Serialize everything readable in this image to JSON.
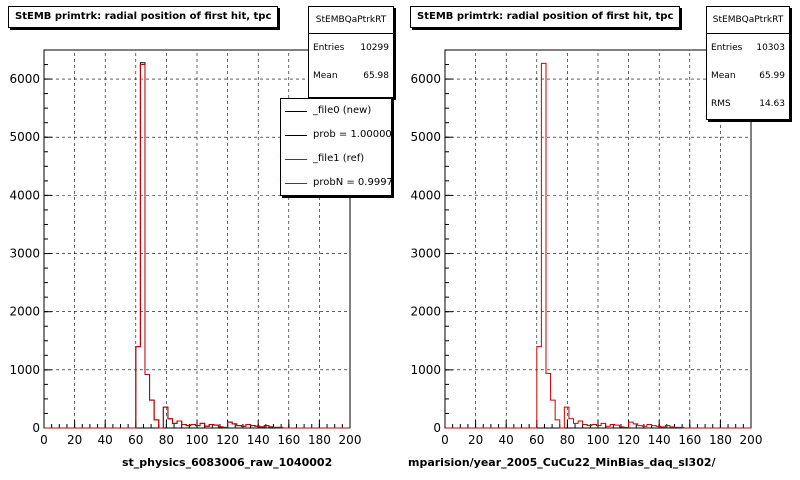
{
  "charts": [
    {
      "title": "StEMB primtrk: radial position of first hit, tpc",
      "stats": {
        "name": "StEMBQaPtrkRT",
        "rows": [
          {
            "label": "Entries",
            "value": "10299"
          },
          {
            "label": "Mean",
            "value": "65.98"
          }
        ]
      },
      "legend": [
        {
          "text": "_file0 (new)",
          "color": "#000000"
        },
        {
          "text": "prob = 1.000000",
          "color": "#000000"
        },
        {
          "text": "_file1 (ref)",
          "color": "#cc0000"
        },
        {
          "text": "probN = 0.999752",
          "color": "#cc0000"
        }
      ],
      "xcaption": "st_physics_6083006_raw_1040002"
    },
    {
      "title": "StEMB primtrk: radial position of first hit, tpc",
      "stats": {
        "name": "StEMBQaPtrkRT",
        "rows": [
          {
            "label": "Entries",
            "value": "10303"
          },
          {
            "label": "Mean",
            "value": "65.99"
          },
          {
            "label": "RMS",
            "value": "14.63"
          }
        ]
      },
      "legend": [],
      "xcaption": "mparision/year_2005_CuCu22_MinBias_daq_sl302/"
    }
  ],
  "chart_data": [
    {
      "type": "step-histogram",
      "title": "StEMB primtrk: radial position of first hit, tpc",
      "xlim": [
        0,
        200
      ],
      "ylim": [
        0,
        6500
      ],
      "xticks": [
        0,
        20,
        40,
        60,
        80,
        100,
        120,
        140,
        160,
        180,
        200
      ],
      "yticks": [
        0,
        1000,
        2000,
        3000,
        4000,
        5000,
        6000
      ],
      "grid": true,
      "bin_width": 3,
      "x_start": 0,
      "series": [
        {
          "name": "_file0 (new)",
          "color": "#000000",
          "values": [
            0,
            0,
            0,
            0,
            0,
            0,
            0,
            0,
            0,
            0,
            0,
            0,
            0,
            0,
            0,
            0,
            0,
            0,
            0,
            0,
            1400,
            6280,
            920,
            480,
            140,
            0,
            360,
            160,
            80,
            120,
            60,
            40,
            60,
            40,
            80,
            30,
            60,
            50,
            20,
            10,
            100,
            70,
            40,
            30,
            60,
            40,
            30,
            20,
            40,
            20,
            10,
            10,
            0,
            0,
            0,
            0,
            0,
            0,
            0,
            0,
            0,
            0,
            0,
            0,
            0,
            0,
            0
          ]
        },
        {
          "name": "_file1 (ref)",
          "color": "#cc0000",
          "values": [
            0,
            0,
            0,
            0,
            0,
            0,
            0,
            0,
            0,
            0,
            0,
            0,
            0,
            0,
            0,
            0,
            0,
            0,
            0,
            0,
            1400,
            6250,
            920,
            480,
            140,
            0,
            360,
            160,
            80,
            120,
            60,
            40,
            60,
            40,
            80,
            30,
            60,
            50,
            20,
            10,
            100,
            70,
            40,
            30,
            60,
            40,
            30,
            20,
            40,
            20,
            10,
            10,
            0,
            0,
            0,
            0,
            0,
            0,
            0,
            0,
            0,
            0,
            0,
            0,
            0,
            0,
            0
          ]
        }
      ]
    },
    {
      "type": "step-histogram",
      "title": "StEMB primtrk: radial position of first hit, tpc",
      "xlim": [
        0,
        200
      ],
      "ylim": [
        0,
        6500
      ],
      "xticks": [
        0,
        20,
        40,
        60,
        80,
        100,
        120,
        140,
        160,
        180,
        200
      ],
      "yticks": [
        0,
        1000,
        2000,
        3000,
        4000,
        5000,
        6000
      ],
      "grid": true,
      "bin_width": 3,
      "x_start": 0,
      "series": [
        {
          "name": "_file1 (ref)",
          "color": "#cc0000",
          "values": [
            0,
            0,
            0,
            0,
            0,
            0,
            0,
            0,
            0,
            0,
            0,
            0,
            0,
            0,
            0,
            0,
            0,
            0,
            0,
            0,
            1400,
            6270,
            940,
            480,
            140,
            0,
            360,
            160,
            80,
            120,
            60,
            40,
            60,
            40,
            80,
            30,
            60,
            50,
            20,
            10,
            100,
            70,
            40,
            30,
            60,
            40,
            30,
            20,
            40,
            20,
            10,
            10,
            0,
            0,
            0,
            0,
            0,
            0,
            0,
            0,
            0,
            0,
            0,
            0,
            0,
            0,
            0
          ]
        }
      ]
    }
  ]
}
